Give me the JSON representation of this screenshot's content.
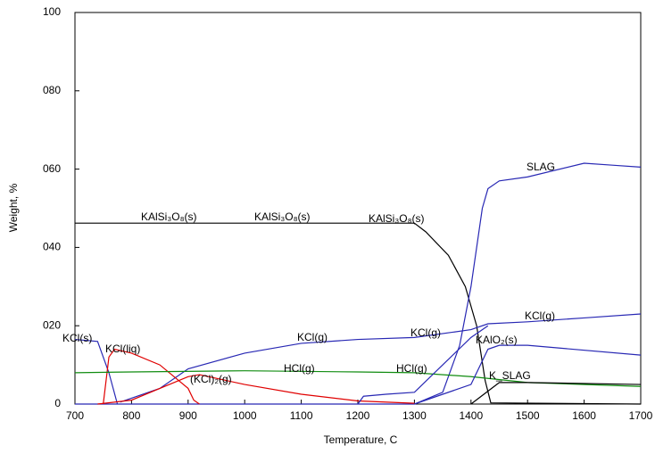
{
  "chart_data": {
    "type": "line",
    "xlabel": "Temperature, C",
    "ylabel": "Weight, %",
    "xlim": [
      700,
      1700
    ],
    "ylim": [
      0,
      100
    ],
    "xticks": [
      700,
      800,
      900,
      1000,
      1100,
      1200,
      1300,
      1400,
      1500,
      1600,
      1700
    ],
    "yticks": [
      0,
      {
        "value": 20,
        "label": "020"
      },
      {
        "value": 40,
        "label": "040"
      },
      {
        "value": 60,
        "label": "060"
      },
      {
        "value": 80,
        "label": "080"
      },
      100
    ],
    "series": [
      {
        "name": "KAlSi₃O₈(s)",
        "color": "#000000",
        "x": [
          700,
          1300,
          1320,
          1360,
          1390,
          1410,
          1425,
          1435,
          1700
        ],
        "values": [
          46.2,
          46.2,
          44,
          38,
          30,
          20,
          6,
          0.3,
          0
        ]
      },
      {
        "name": "SLAG",
        "color": "#2828b4",
        "x": [
          700,
          1300,
          1350,
          1380,
          1400,
          1420,
          1430,
          1450,
          1500,
          1600,
          1650,
          1700
        ],
        "values": [
          0,
          0,
          3,
          15,
          30,
          50,
          55,
          57,
          58,
          61.5,
          61,
          60.5
        ]
      },
      {
        "name": "KCl(g)",
        "color": "#2828b4",
        "x": [
          780,
          850,
          900,
          1000,
          1100,
          1200,
          1300,
          1400,
          1430,
          1500,
          1600,
          1700
        ],
        "values": [
          0.5,
          4,
          9,
          13,
          15.5,
          16.5,
          17,
          19,
          20.5,
          21,
          22,
          23
        ]
      },
      {
        "name": "KCl(s)",
        "color": "#2828b4",
        "x": [
          700,
          740,
          760,
          775
        ],
        "values": [
          16.5,
          16,
          8,
          0
        ]
      },
      {
        "name": "KCl(liq)",
        "color": "#e00000",
        "x": [
          750,
          760,
          770,
          800,
          850,
          900,
          910,
          920
        ],
        "values": [
          0,
          12,
          14,
          13,
          10,
          4,
          1,
          0
        ]
      },
      {
        "name": "(KCl)₂(g)",
        "color": "#e00000",
        "x": [
          740,
          800,
          900,
          920,
          1000,
          1100,
          1200,
          1300
        ],
        "values": [
          0,
          1,
          7,
          7.5,
          5,
          2.5,
          0.8,
          0.2
        ]
      },
      {
        "name": "HCl(g)",
        "color": "#108c10",
        "x": [
          700,
          800,
          1000,
          1200,
          1300,
          1400,
          1500,
          1700
        ],
        "values": [
          8,
          8.2,
          8.5,
          8.2,
          8,
          7,
          5.5,
          4.5
        ]
      },
      {
        "name": "KCl(g)",
        "color": "#2828b4",
        "x": [
          1200,
          1210,
          1250,
          1300,
          1350,
          1400,
          1430
        ],
        "values": [
          0,
          2,
          2.5,
          3,
          10,
          17,
          20
        ]
      },
      {
        "name": "KAlO₂(s)",
        "color": "#2828b4",
        "x": [
          1300,
          1400,
          1430,
          1450,
          1500,
          1700
        ],
        "values": [
          0,
          5,
          14,
          15,
          15,
          12.5
        ]
      },
      {
        "name": "K_SLAG",
        "color": "#000000",
        "x": [
          1400,
          1450,
          1500,
          1700
        ],
        "values": [
          0,
          5.5,
          5.5,
          5
        ]
      }
    ]
  }
}
